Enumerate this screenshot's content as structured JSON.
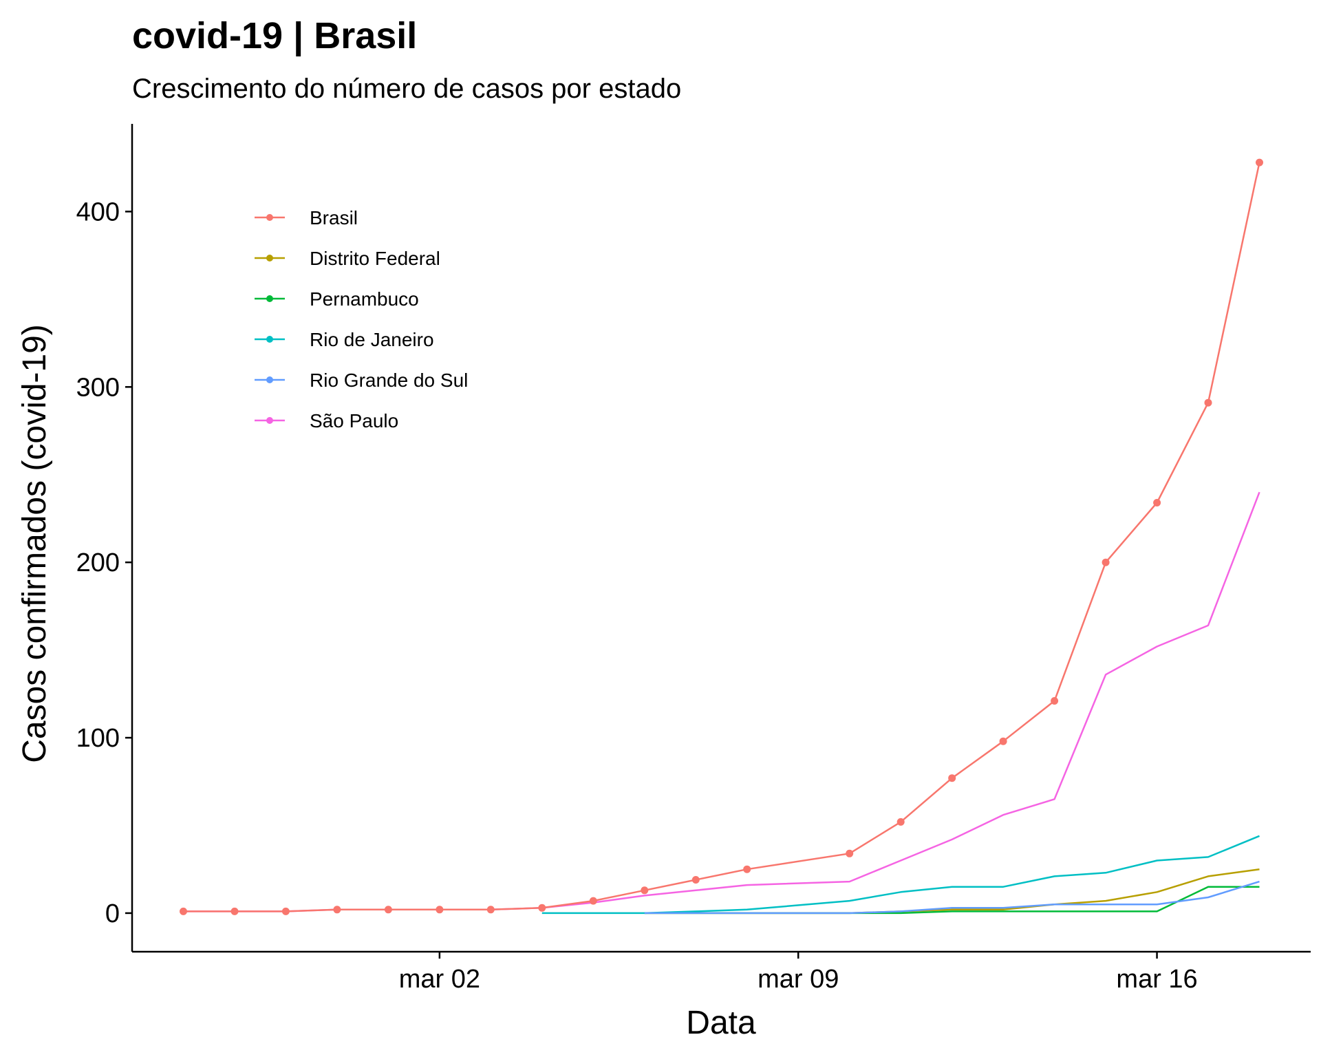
{
  "chart_data": {
    "type": "line",
    "title": "covid-19 | Brasil",
    "subtitle": "Crescimento do número de casos por estado",
    "xlabel": "Data",
    "ylabel": "Casos confirmados (covid-19)",
    "x": [
      "2020-02-26",
      "2020-02-27",
      "2020-02-28",
      "2020-02-29",
      "2020-03-01",
      "2020-03-02",
      "2020-03-03",
      "2020-03-04",
      "2020-03-05",
      "2020-03-06",
      "2020-03-07",
      "2020-03-08",
      "2020-03-09",
      "2020-03-10",
      "2020-03-11",
      "2020-03-12",
      "2020-03-13",
      "2020-03-14",
      "2020-03-15",
      "2020-03-16",
      "2020-03-17",
      "2020-03-18"
    ],
    "xlim": [
      "2020-02-25",
      "2020-03-19"
    ],
    "x_ticks": [
      {
        "date": "2020-03-02",
        "label": "mar 02"
      },
      {
        "date": "2020-03-09",
        "label": "mar 09"
      },
      {
        "date": "2020-03-16",
        "label": "mar 16"
      }
    ],
    "ylim": [
      -22,
      450
    ],
    "y_ticks": [
      0,
      100,
      200,
      300,
      400
    ],
    "grid": false,
    "legend_position": "top-left",
    "series": [
      {
        "name": "Brasil",
        "color": "#F8766D",
        "points": true,
        "values": [
          1,
          1,
          1,
          2,
          2,
          2,
          2,
          3,
          7,
          13,
          19,
          25,
          null,
          34,
          52,
          77,
          98,
          121,
          200,
          234,
          291,
          428
        ],
        "segment_breaks": false
      },
      {
        "name": "Distrito Federal",
        "color": "#B79F00",
        "points": false,
        "values": [
          null,
          null,
          null,
          null,
          null,
          null,
          null,
          null,
          null,
          0,
          0,
          0,
          null,
          0,
          1,
          2,
          2,
          5,
          7,
          12,
          21,
          25
        ]
      },
      {
        "name": "Pernambuco",
        "color": "#00BA38",
        "points": false,
        "values": [
          null,
          null,
          null,
          null,
          null,
          null,
          null,
          null,
          null,
          0,
          0,
          0,
          null,
          0,
          0,
          1,
          1,
          1,
          1,
          1,
          15,
          15
        ]
      },
      {
        "name": "Rio de Janeiro",
        "color": "#00BFC4",
        "points": false,
        "values": [
          null,
          null,
          null,
          null,
          null,
          null,
          null,
          0,
          0,
          0,
          1,
          2,
          null,
          7,
          12,
          15,
          15,
          21,
          23,
          30,
          32,
          44
        ]
      },
      {
        "name": "Rio Grande do Sul",
        "color": "#619CFF",
        "points": false,
        "values": [
          null,
          null,
          null,
          null,
          null,
          null,
          null,
          null,
          null,
          0,
          0,
          0,
          null,
          0,
          1,
          3,
          3,
          5,
          5,
          5,
          9,
          18
        ]
      },
      {
        "name": "São Paulo",
        "color": "#F564E3",
        "points": false,
        "values": [
          1,
          1,
          1,
          2,
          2,
          2,
          2,
          3,
          6,
          10,
          13,
          16,
          null,
          18,
          30,
          42,
          56,
          65,
          136,
          152,
          164,
          240
        ]
      }
    ]
  }
}
